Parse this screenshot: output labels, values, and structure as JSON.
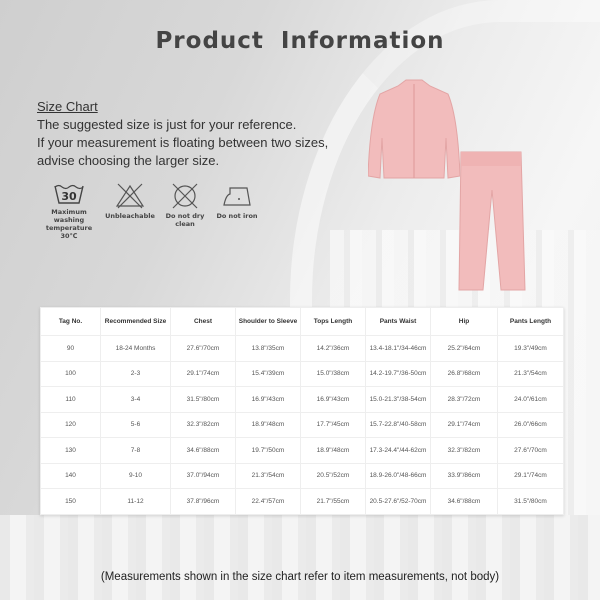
{
  "title": "Product Information",
  "size_chart_label": "Size Chart",
  "description": [
    "The suggested size is just for your reference.",
    "If your measurement is floating between two sizes,",
    "advise choosing the larger size."
  ],
  "care": [
    {
      "icon": "wash-30-icon",
      "label": "Maximum washing temperature 30℃",
      "number": "30"
    },
    {
      "icon": "no-bleach-icon",
      "label": "Unbleachable"
    },
    {
      "icon": "no-dry-clean-icon",
      "label": "Do not dry clean"
    },
    {
      "icon": "no-iron-icon",
      "label": "Do not iron"
    }
  ],
  "table": {
    "headers": [
      "Tag No.",
      "Recommended Size",
      "Chest",
      "Shoulder to Sleeve",
      "Tops Length",
      "Pants Waist",
      "Hip",
      "Pants Length"
    ],
    "rows": [
      [
        "90",
        "18-24 Months",
        "27.6\"/70cm",
        "13.8\"/35cm",
        "14.2\"/36cm",
        "13.4-18.1\"/34-46cm",
        "25.2\"/64cm",
        "19.3\"/49cm"
      ],
      [
        "100",
        "2-3",
        "29.1\"/74cm",
        "15.4\"/39cm",
        "15.0\"/38cm",
        "14.2-19.7\"/36-50cm",
        "26.8\"/68cm",
        "21.3\"/54cm"
      ],
      [
        "110",
        "3-4",
        "31.5\"/80cm",
        "16.9\"/43cm",
        "16.9\"/43cm",
        "15.0-21.3\"/38-54cm",
        "28.3\"/72cm",
        "24.0\"/61cm"
      ],
      [
        "120",
        "5-6",
        "32.3\"/82cm",
        "18.9\"/48cm",
        "17.7\"/45cm",
        "15.7-22.8\"/40-58cm",
        "29.1\"/74cm",
        "26.0\"/66cm"
      ],
      [
        "130",
        "7-8",
        "34.6\"/88cm",
        "19.7\"/50cm",
        "18.9\"/48cm",
        "17.3-24.4\"/44-62cm",
        "32.3\"/82cm",
        "27.6\"/70cm"
      ],
      [
        "140",
        "9-10",
        "37.0\"/94cm",
        "21.3\"/54cm",
        "20.5\"/52cm",
        "18.9-26.0\"/48-66cm",
        "33.9\"/86cm",
        "29.1\"/74cm"
      ],
      [
        "150",
        "11-12",
        "37.8\"/96cm",
        "22.4\"/57cm",
        "21.7\"/55cm",
        "20.5-27.6\"/52-70cm",
        "34.6\"/88cm",
        "31.5\"/80cm"
      ]
    ]
  },
  "footnote": "(Measurements shown in the size chart refer to item measurements, not body)",
  "colors": {
    "garment": "#f2bcbc"
  }
}
